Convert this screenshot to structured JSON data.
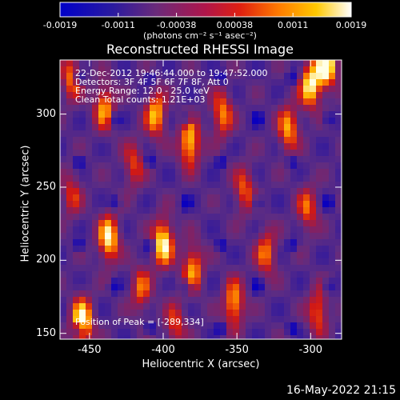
{
  "colorbar": {
    "ticks": [
      "-0.0019",
      "-0.0011",
      "-0.00038",
      "0.00038",
      "0.0011",
      "0.0019"
    ],
    "units": "(photons cm⁻² s⁻¹ asec⁻²)"
  },
  "info_lines": [
    "22-Dec-2012 19:46:44.000 to 19:47:52.000",
    "Detectors: 3F 4F 5F 6F 7F 8F, Att 0",
    "Energy Range: 12.0 - 25.0 keV",
    "Clean     Total counts: 1.21E+03"
  ],
  "peak_text": "Position of Peak = [-289,334]",
  "footer": "16-May-2022 21:15",
  "chart_data": {
    "type": "heatmap",
    "title": "Reconstructed RHESSI Image",
    "xlabel": "Heliocentric X (arcsec)",
    "ylabel": "Heliocentric Y (arcsec)",
    "xlim": [
      -470,
      -279
    ],
    "ylim": [
      146,
      337
    ],
    "xticks": [
      -450,
      -400,
      -350,
      -300
    ],
    "yticks": [
      150,
      200,
      250,
      300
    ],
    "color_range": [
      -0.0019,
      0.0019
    ],
    "colormap": "blue-purple-red-yellow-white",
    "grid": false,
    "ridges": [
      {
        "x": -462,
        "y": 325,
        "amp": 0.6
      },
      {
        "x": -462,
        "y": 245,
        "amp": 0.45
      },
      {
        "x": -455,
        "y": 158,
        "amp": 1.0
      },
      {
        "x": -440,
        "y": 305,
        "amp": 0.7
      },
      {
        "x": -437,
        "y": 215,
        "amp": 0.9
      },
      {
        "x": -420,
        "y": 265,
        "amp": 0.5
      },
      {
        "x": -415,
        "y": 180,
        "amp": 0.55
      },
      {
        "x": -405,
        "y": 300,
        "amp": 0.75
      },
      {
        "x": -400,
        "y": 212,
        "amp": 0.95
      },
      {
        "x": -392,
        "y": 155,
        "amp": 0.5
      },
      {
        "x": -382,
        "y": 280,
        "amp": 0.85
      },
      {
        "x": -380,
        "y": 195,
        "amp": 0.7
      },
      {
        "x": -360,
        "y": 300,
        "amp": 0.65
      },
      {
        "x": -352,
        "y": 170,
        "amp": 0.75
      },
      {
        "x": -345,
        "y": 248,
        "amp": 0.55
      },
      {
        "x": -330,
        "y": 205,
        "amp": 0.6
      },
      {
        "x": -315,
        "y": 290,
        "amp": 0.7
      },
      {
        "x": -300,
        "y": 320,
        "amp": 0.9
      },
      {
        "x": -302,
        "y": 235,
        "amp": 0.55
      },
      {
        "x": -295,
        "y": 165,
        "amp": 0.6
      },
      {
        "x": -289,
        "y": 334,
        "amp": 1.0
      }
    ]
  }
}
